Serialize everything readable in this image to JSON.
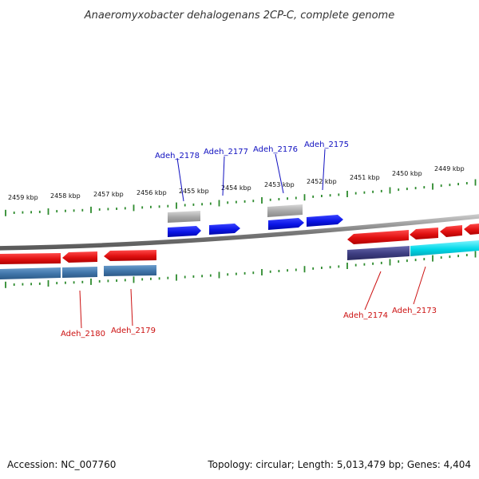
{
  "title": "Anaeromyxobacter dehalogenans 2CP-C, complete genome",
  "footer": {
    "accession": "Accession: NC_007760",
    "summary": "Topology: circular; Length: 5,013,479 bp; Genes: 4,404"
  },
  "colors": {
    "backbone": "#8c8c8c",
    "ticks": "#2e8b2e",
    "forward_gene": "#0a14e6",
    "forward_label": "#1010c0",
    "reverse_gene": "#e11a1a",
    "reverse_label": "#cc1111",
    "rna_gray": "#a8a8a8",
    "cds_steel": "#3f74a8",
    "cds_indigo": "#3d3d80",
    "cds_cyan": "#00d8e8"
  },
  "ruler_labels": [
    "2459 kbp",
    "2458 kbp",
    "2457 kbp",
    "2456 kbp",
    "2455 kbp",
    "2454 kbp",
    "2453 kbp",
    "2452 kbp",
    "2451 kbp",
    "2450 kbp",
    "2449 kbp"
  ],
  "forward_genes": [
    {
      "name": "Adeh_2178"
    },
    {
      "name": "Adeh_2177"
    },
    {
      "name": "Adeh_2176"
    },
    {
      "name": "Adeh_2175"
    }
  ],
  "reverse_genes": [
    {
      "name": "Adeh_2180"
    },
    {
      "name": "Adeh_2179"
    },
    {
      "name": "Adeh_2174"
    },
    {
      "name": "Adeh_2173"
    }
  ]
}
